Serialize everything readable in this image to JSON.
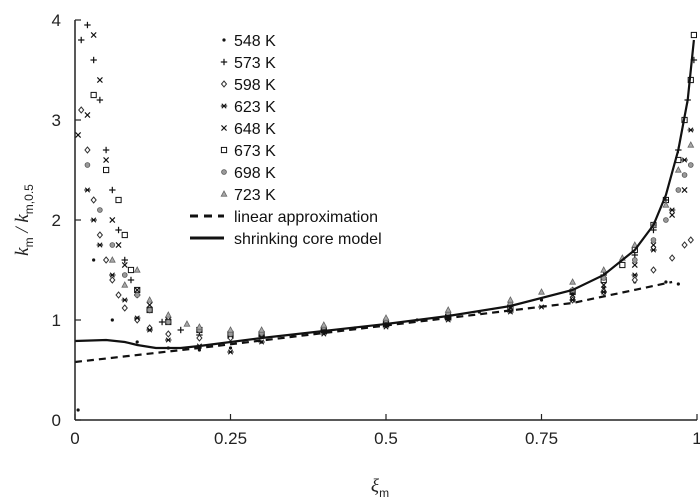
{
  "chart_data": {
    "type": "scatter",
    "xlabel": "ξm",
    "ylabel": "km / km,0.5",
    "xlim": [
      0,
      1
    ],
    "ylim": [
      0,
      4
    ],
    "x_ticks": [
      "0",
      "0.25",
      "0.5",
      "0.75",
      "1"
    ],
    "y_ticks": [
      "0",
      "1",
      "2",
      "3",
      "4"
    ],
    "grid": false,
    "legend_position": "top-left",
    "series": [
      {
        "name": "548 K",
        "marker": "dot",
        "color": "#111111",
        "points": [
          [
            0.005,
            0.1
          ],
          [
            0.03,
            1.6
          ],
          [
            0.06,
            1.0
          ],
          [
            0.1,
            0.78
          ],
          [
            0.15,
            0.72
          ],
          [
            0.2,
            0.7
          ],
          [
            0.25,
            0.72
          ],
          [
            0.3,
            0.78
          ],
          [
            0.35,
            0.84
          ],
          [
            0.4,
            0.88
          ],
          [
            0.45,
            0.92
          ],
          [
            0.5,
            0.96
          ],
          [
            0.55,
            1.0
          ],
          [
            0.6,
            1.04
          ],
          [
            0.65,
            1.08
          ],
          [
            0.7,
            1.13
          ],
          [
            0.75,
            1.2
          ],
          [
            0.8,
            1.26
          ],
          [
            0.85,
            1.32
          ],
          [
            0.9,
            1.38
          ],
          [
            0.95,
            1.38
          ],
          [
            0.97,
            1.36
          ]
        ]
      },
      {
        "name": "573 K",
        "marker": "plus",
        "color": "#111111",
        "points": [
          [
            0.01,
            3.8
          ],
          [
            0.02,
            3.95
          ],
          [
            0.03,
            3.6
          ],
          [
            0.04,
            3.2
          ],
          [
            0.05,
            2.7
          ],
          [
            0.06,
            2.3
          ],
          [
            0.07,
            1.9
          ],
          [
            0.08,
            1.6
          ],
          [
            0.09,
            1.4
          ],
          [
            0.1,
            1.25
          ],
          [
            0.12,
            1.1
          ],
          [
            0.14,
            0.98
          ],
          [
            0.17,
            0.9
          ],
          [
            0.2,
            0.85
          ],
          [
            0.25,
            0.82
          ],
          [
            0.3,
            0.84
          ],
          [
            0.4,
            0.9
          ],
          [
            0.5,
            0.97
          ],
          [
            0.6,
            1.05
          ],
          [
            0.7,
            1.15
          ],
          [
            0.8,
            1.3
          ],
          [
            0.85,
            1.45
          ],
          [
            0.9,
            1.65
          ],
          [
            0.93,
            1.9
          ],
          [
            0.95,
            2.2
          ],
          [
            0.97,
            2.7
          ],
          [
            0.985,
            3.2
          ],
          [
            0.995,
            3.6
          ]
        ]
      },
      {
        "name": "598 K",
        "marker": "diamond",
        "color": "#333333",
        "points": [
          [
            0.01,
            3.1
          ],
          [
            0.02,
            2.7
          ],
          [
            0.03,
            2.2
          ],
          [
            0.04,
            1.85
          ],
          [
            0.05,
            1.6
          ],
          [
            0.06,
            1.4
          ],
          [
            0.07,
            1.25
          ],
          [
            0.08,
            1.12
          ],
          [
            0.1,
            1.0
          ],
          [
            0.12,
            0.92
          ],
          [
            0.15,
            0.86
          ],
          [
            0.2,
            0.82
          ],
          [
            0.25,
            0.82
          ],
          [
            0.3,
            0.85
          ],
          [
            0.4,
            0.9
          ],
          [
            0.5,
            0.96
          ],
          [
            0.6,
            1.02
          ],
          [
            0.7,
            1.1
          ],
          [
            0.8,
            1.2
          ],
          [
            0.85,
            1.28
          ],
          [
            0.9,
            1.4
          ],
          [
            0.93,
            1.5
          ],
          [
            0.96,
            1.62
          ],
          [
            0.98,
            1.75
          ],
          [
            0.99,
            1.8
          ]
        ]
      },
      {
        "name": "623 K",
        "marker": "star",
        "color": "#111111",
        "points": [
          [
            0.02,
            2.3
          ],
          [
            0.03,
            2.0
          ],
          [
            0.04,
            1.75
          ],
          [
            0.06,
            1.45
          ],
          [
            0.08,
            1.2
          ],
          [
            0.1,
            1.02
          ],
          [
            0.12,
            0.9
          ],
          [
            0.15,
            0.8
          ],
          [
            0.2,
            0.74
          ],
          [
            0.25,
            0.68
          ],
          [
            0.3,
            0.78
          ],
          [
            0.4,
            0.86
          ],
          [
            0.5,
            0.93
          ],
          [
            0.6,
            1.0
          ],
          [
            0.7,
            1.08
          ],
          [
            0.75,
            1.13
          ],
          [
            0.8,
            1.2
          ],
          [
            0.85,
            1.28
          ],
          [
            0.9,
            1.45
          ],
          [
            0.93,
            1.7
          ],
          [
            0.96,
            2.1
          ],
          [
            0.98,
            2.6
          ],
          [
            0.99,
            2.9
          ]
        ]
      },
      {
        "name": "648 K",
        "marker": "cross",
        "color": "#111111",
        "points": [
          [
            0.005,
            2.85
          ],
          [
            0.02,
            3.05
          ],
          [
            0.03,
            3.85
          ],
          [
            0.04,
            3.4
          ],
          [
            0.05,
            2.6
          ],
          [
            0.06,
            2.0
          ],
          [
            0.07,
            1.75
          ],
          [
            0.08,
            1.55
          ],
          [
            0.1,
            1.3
          ],
          [
            0.12,
            1.15
          ],
          [
            0.15,
            1.0
          ],
          [
            0.2,
            0.9
          ],
          [
            0.25,
            0.85
          ],
          [
            0.3,
            0.86
          ],
          [
            0.4,
            0.91
          ],
          [
            0.5,
            0.97
          ],
          [
            0.6,
            1.04
          ],
          [
            0.7,
            1.12
          ],
          [
            0.8,
            1.25
          ],
          [
            0.85,
            1.35
          ],
          [
            0.9,
            1.55
          ],
          [
            0.93,
            1.75
          ],
          [
            0.96,
            2.05
          ],
          [
            0.98,
            2.3
          ]
        ]
      },
      {
        "name": "673 K",
        "marker": "square",
        "color": "#111111",
        "points": [
          [
            0.03,
            3.25
          ],
          [
            0.05,
            2.5
          ],
          [
            0.07,
            2.2
          ],
          [
            0.08,
            1.85
          ],
          [
            0.09,
            1.5
          ],
          [
            0.1,
            1.3
          ],
          [
            0.12,
            1.1
          ],
          [
            0.15,
            0.98
          ],
          [
            0.2,
            0.9
          ],
          [
            0.25,
            0.86
          ],
          [
            0.3,
            0.86
          ],
          [
            0.4,
            0.9
          ],
          [
            0.5,
            0.96
          ],
          [
            0.6,
            1.03
          ],
          [
            0.7,
            1.12
          ],
          [
            0.8,
            1.28
          ],
          [
            0.85,
            1.4
          ],
          [
            0.88,
            1.55
          ],
          [
            0.9,
            1.7
          ],
          [
            0.93,
            1.95
          ],
          [
            0.95,
            2.2
          ],
          [
            0.97,
            2.6
          ],
          [
            0.98,
            3.0
          ],
          [
            0.99,
            3.4
          ],
          [
            0.995,
            3.85
          ]
        ]
      },
      {
        "name": "698 K",
        "marker": "circle",
        "color": "#555555",
        "points": [
          [
            0.02,
            2.55
          ],
          [
            0.04,
            2.1
          ],
          [
            0.06,
            1.75
          ],
          [
            0.08,
            1.45
          ],
          [
            0.1,
            1.25
          ],
          [
            0.12,
            1.1
          ],
          [
            0.15,
            0.98
          ],
          [
            0.2,
            0.9
          ],
          [
            0.25,
            0.86
          ],
          [
            0.3,
            0.87
          ],
          [
            0.4,
            0.93
          ],
          [
            0.5,
            1.0
          ],
          [
            0.6,
            1.07
          ],
          [
            0.7,
            1.16
          ],
          [
            0.8,
            1.3
          ],
          [
            0.85,
            1.42
          ],
          [
            0.9,
            1.6
          ],
          [
            0.93,
            1.8
          ],
          [
            0.95,
            2.0
          ],
          [
            0.97,
            2.3
          ],
          [
            0.98,
            2.45
          ],
          [
            0.99,
            2.55
          ]
        ]
      },
      {
        "name": "723 K",
        "marker": "triangle",
        "color": "#666666",
        "points": [
          [
            0.06,
            1.6
          ],
          [
            0.08,
            1.35
          ],
          [
            0.1,
            1.5
          ],
          [
            0.12,
            1.2
          ],
          [
            0.15,
            1.05
          ],
          [
            0.18,
            0.96
          ],
          [
            0.2,
            0.93
          ],
          [
            0.25,
            0.9
          ],
          [
            0.3,
            0.9
          ],
          [
            0.4,
            0.95
          ],
          [
            0.5,
            1.02
          ],
          [
            0.6,
            1.1
          ],
          [
            0.7,
            1.2
          ],
          [
            0.75,
            1.28
          ],
          [
            0.8,
            1.38
          ],
          [
            0.85,
            1.5
          ],
          [
            0.88,
            1.62
          ],
          [
            0.9,
            1.75
          ],
          [
            0.93,
            1.95
          ],
          [
            0.95,
            2.15
          ],
          [
            0.97,
            2.5
          ],
          [
            0.99,
            2.75
          ]
        ]
      },
      {
        "name": "linear approximation",
        "style": "dashed",
        "color": "#111111",
        "points": [
          [
            0,
            0.58
          ],
          [
            0.2,
            0.72
          ],
          [
            0.4,
            0.87
          ],
          [
            0.6,
            1.02
          ],
          [
            0.8,
            1.17
          ],
          [
            0.96,
            1.38
          ]
        ]
      },
      {
        "name": "shrinking core model",
        "style": "solid",
        "color": "#111111",
        "points": [
          [
            0,
            0.79
          ],
          [
            0.05,
            0.8
          ],
          [
            0.08,
            0.78
          ],
          [
            0.1,
            0.75
          ],
          [
            0.13,
            0.72
          ],
          [
            0.17,
            0.72
          ],
          [
            0.2,
            0.74
          ],
          [
            0.3,
            0.82
          ],
          [
            0.4,
            0.89
          ],
          [
            0.5,
            0.96
          ],
          [
            0.6,
            1.04
          ],
          [
            0.7,
            1.14
          ],
          [
            0.8,
            1.3
          ],
          [
            0.85,
            1.45
          ],
          [
            0.9,
            1.7
          ],
          [
            0.93,
            1.95
          ],
          [
            0.95,
            2.25
          ],
          [
            0.97,
            2.7
          ],
          [
            0.985,
            3.2
          ],
          [
            0.995,
            3.8
          ]
        ]
      }
    ]
  }
}
